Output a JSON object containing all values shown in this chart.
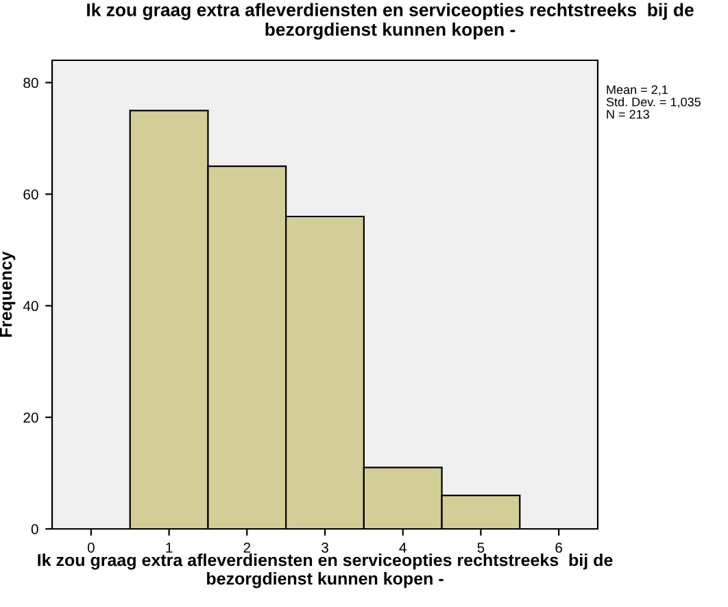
{
  "chart_data": {
    "type": "histogram",
    "title": "Ik zou graag extra afleverdiensten en serviceopties rechtstreeks  bij de bezorgdienst kunnen kopen -",
    "xlabel": "Ik zou graag extra afleverdiensten en serviceopties rechtstreeks  bij de bezorgdienst kunnen kopen -",
    "ylabel": "Frequency",
    "bins": [
      0.5,
      1.5,
      2.5,
      3.5,
      4.5,
      5.5
    ],
    "values": [
      75,
      65,
      56,
      11,
      6
    ],
    "color": "#d3ce97",
    "xlim": [
      -0.5,
      6.5
    ],
    "xticks": [
      0,
      1,
      2,
      3,
      4,
      5,
      6
    ],
    "ylim": [
      0,
      84
    ],
    "yticks": [
      0,
      20,
      40,
      60,
      80
    ],
    "grid": false,
    "annotations": [
      "Mean = 2,1",
      "Std. Dev. = 1,035",
      "N = 213"
    ]
  }
}
